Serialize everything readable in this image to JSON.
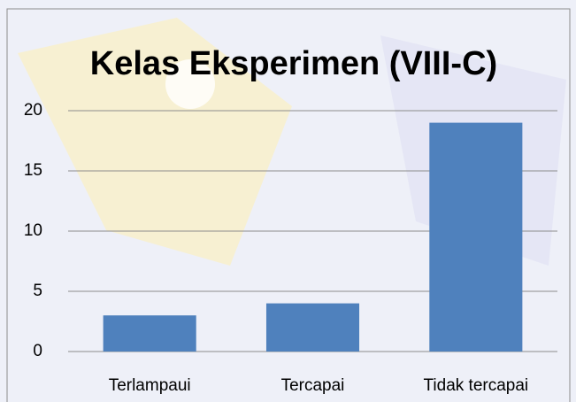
{
  "chart_data": {
    "type": "bar",
    "title": "Kelas Eksperimen (VIII-C)",
    "categories": [
      "Terlampaui",
      "Tercapai",
      "Tidak tercapai"
    ],
    "values": [
      3,
      4,
      19
    ],
    "color": "#4f81bd",
    "ylim": [
      0,
      20
    ],
    "yticks": [
      0,
      5,
      10,
      15,
      20
    ],
    "grid": true
  }
}
